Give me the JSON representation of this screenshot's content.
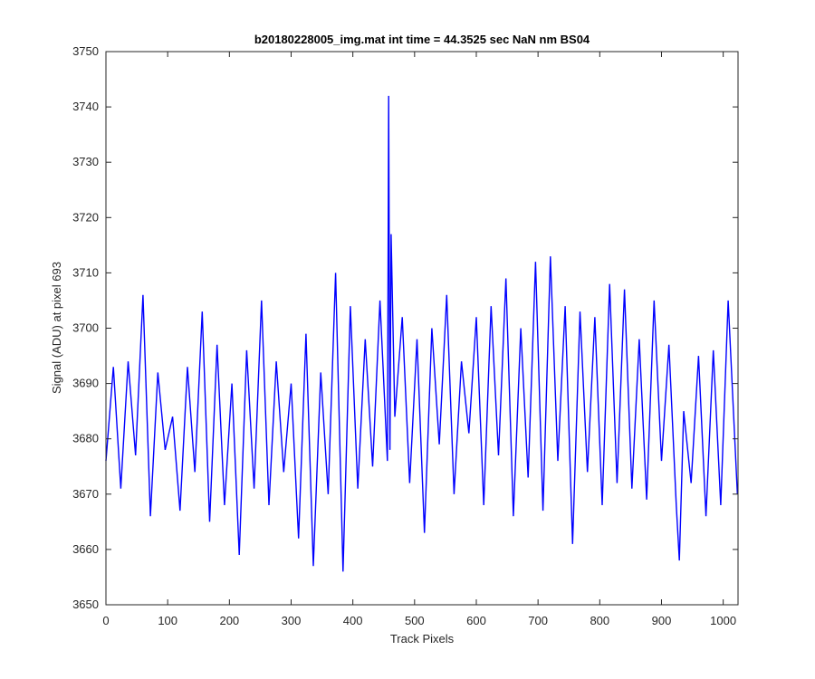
{
  "chart_data": {
    "type": "line",
    "title": "b20180228005_img.mat int time = 44.3525 sec  NaN nm BS04",
    "xlabel": "Track Pixels",
    "ylabel": "Signal (ADU) at pixel 693",
    "xlim": [
      0,
      1024
    ],
    "ylim": [
      3650,
      3750
    ],
    "xticks": [
      0,
      100,
      200,
      300,
      400,
      500,
      600,
      700,
      800,
      900,
      1000
    ],
    "yticks": [
      3650,
      3660,
      3670,
      3680,
      3690,
      3700,
      3710,
      3720,
      3730,
      3740,
      3750
    ],
    "grid": false,
    "legend": "none",
    "series": [
      {
        "color": "#0000ff",
        "x": [
          0,
          12,
          24,
          36,
          48,
          60,
          72,
          84,
          96,
          108,
          120,
          132,
          144,
          156,
          168,
          180,
          192,
          204,
          216,
          228,
          240,
          252,
          264,
          276,
          288,
          300,
          312,
          324,
          336,
          348,
          360,
          372,
          384,
          396,
          408,
          420,
          432,
          444,
          456,
          458,
          460,
          462,
          468,
          480,
          492,
          504,
          516,
          528,
          540,
          552,
          564,
          576,
          588,
          600,
          612,
          624,
          636,
          648,
          660,
          672,
          684,
          696,
          708,
          720,
          732,
          744,
          756,
          768,
          780,
          792,
          804,
          816,
          828,
          840,
          852,
          864,
          876,
          888,
          900,
          912,
          924,
          929,
          936,
          948,
          960,
          972,
          984,
          996,
          1008,
          1023
        ],
        "y": [
          3676,
          3693,
          3671,
          3694,
          3677,
          3706,
          3666,
          3692,
          3678,
          3684,
          3667,
          3693,
          3674,
          3703,
          3665,
          3697,
          3668,
          3690,
          3659,
          3696,
          3671,
          3705,
          3668,
          3694,
          3674,
          3690,
          3662,
          3699,
          3657,
          3692,
          3670,
          3710,
          3656,
          3704,
          3671,
          3698,
          3675,
          3705,
          3676,
          3742,
          3678,
          3717,
          3684,
          3702,
          3672,
          3698,
          3663,
          3700,
          3679,
          3706,
          3670,
          3694,
          3681,
          3702,
          3668,
          3704,
          3677,
          3709,
          3666,
          3700,
          3673,
          3712,
          3667,
          3713,
          3676,
          3704,
          3661,
          3703,
          3674,
          3702,
          3668,
          3708,
          3672,
          3707,
          3671,
          3698,
          3669,
          3705,
          3676,
          3697,
          3668,
          3658,
          3685,
          3672,
          3695,
          3666,
          3696,
          3668,
          3705,
          3670
        ]
      }
    ]
  }
}
